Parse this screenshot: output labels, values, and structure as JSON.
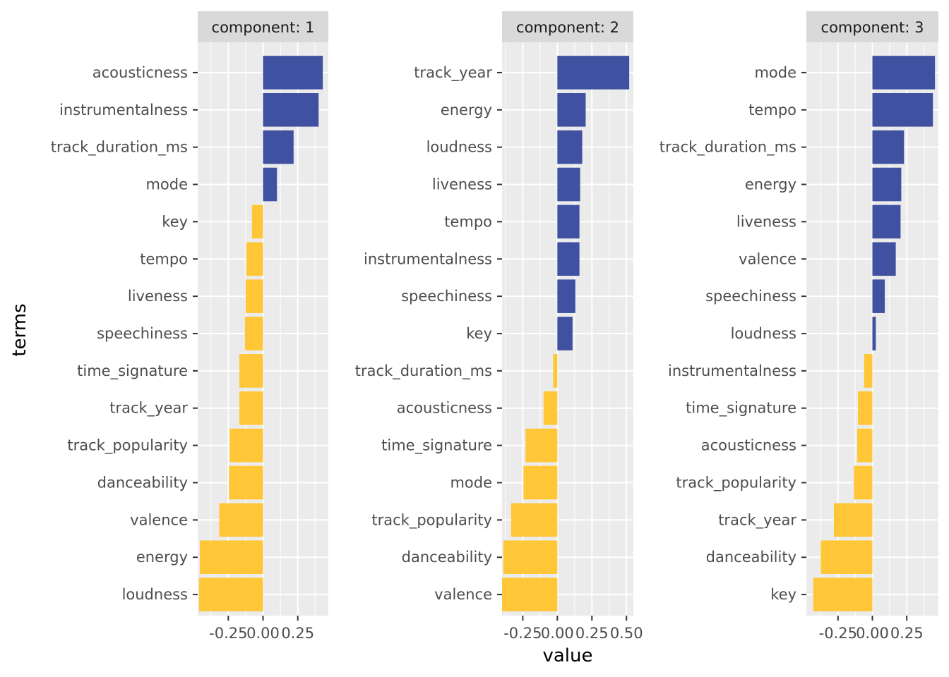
{
  "chart_data": {
    "type": "bar",
    "orientation": "horizontal",
    "xlabel": "value",
    "ylabel": "terms",
    "colors": {
      "positive": "#3F51A0",
      "negative": "#FFC737",
      "panel_bg": "#EBEBEB",
      "strip_bg": "#D9D9D9",
      "grid": "#FFFFFF"
    },
    "panels": [
      {
        "strip": "component: 1",
        "xlim": [
          -0.47,
          0.47
        ],
        "xticks": [
          -0.25,
          0.0,
          0.25
        ],
        "xtick_labels": [
          "-0.25",
          "0.00",
          "0.25"
        ],
        "categories": [
          "acousticness",
          "instrumentalness",
          "track_duration_ms",
          "mode",
          "key",
          "tempo",
          "liveness",
          "speechiness",
          "time_signature",
          "track_year",
          "track_popularity",
          "danceability",
          "valence",
          "energy",
          "loudness"
        ],
        "values": [
          0.43,
          0.4,
          0.22,
          0.1,
          -0.08,
          -0.12,
          -0.125,
          -0.13,
          -0.17,
          -0.17,
          -0.24,
          -0.245,
          -0.315,
          -0.455,
          -0.46
        ]
      },
      {
        "strip": "component: 2",
        "xlim": [
          -0.4,
          0.55
        ],
        "xticks": [
          -0.25,
          0.0,
          0.25,
          0.5
        ],
        "xtick_labels": [
          "-0.25",
          "0.00",
          "0.25",
          "0.50"
        ],
        "categories": [
          "track_year",
          "energy",
          "loudness",
          "liveness",
          "tempo",
          "instrumentalness",
          "speechiness",
          "key",
          "track_duration_ms",
          "acousticness",
          "time_signature",
          "mode",
          "track_popularity",
          "danceability",
          "valence"
        ],
        "values": [
          0.52,
          0.205,
          0.18,
          0.165,
          0.16,
          0.16,
          0.13,
          0.11,
          -0.03,
          -0.1,
          -0.23,
          -0.245,
          -0.335,
          -0.39,
          -0.4
        ]
      },
      {
        "strip": "component: 3",
        "xlim": [
          -0.48,
          0.48
        ],
        "xticks": [
          -0.25,
          0.0,
          0.25
        ],
        "xtick_labels": [
          "-0.25",
          "0.00",
          "0.25"
        ],
        "categories": [
          "mode",
          "tempo",
          "track_duration_ms",
          "energy",
          "liveness",
          "valence",
          "speechiness",
          "loudness",
          "instrumentalness",
          "time_signature",
          "acousticness",
          "track_popularity",
          "track_year",
          "danceability",
          "key"
        ],
        "values": [
          0.455,
          0.44,
          0.23,
          0.21,
          0.205,
          0.17,
          0.09,
          0.025,
          -0.06,
          -0.105,
          -0.11,
          -0.135,
          -0.28,
          -0.375,
          -0.43
        ]
      }
    ]
  }
}
